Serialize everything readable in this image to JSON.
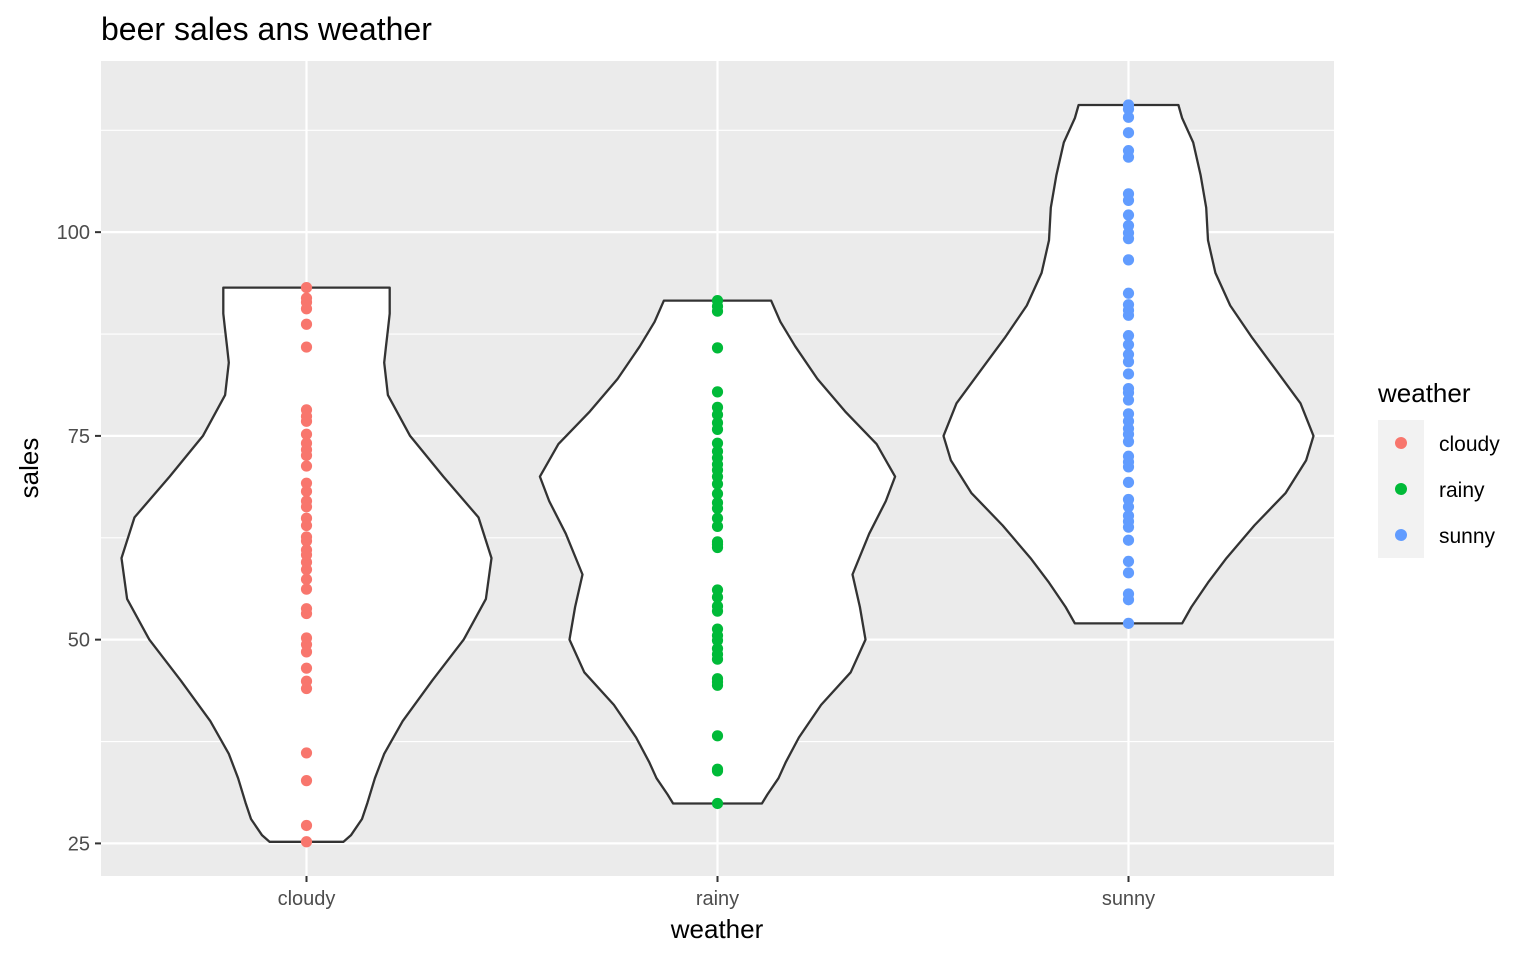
{
  "chart_data": {
    "type": "violin",
    "title": "beer sales ans weather",
    "xlabel": "weather",
    "ylabel": "sales",
    "categories": [
      "cloudy",
      "rainy",
      "sunny"
    ],
    "y_ticks": [
      25,
      50,
      75,
      100
    ],
    "ylim": [
      21,
      121
    ],
    "grid": true,
    "legend": {
      "title": "weather",
      "placement": "right",
      "entries": [
        "cloudy",
        "rainy",
        "sunny"
      ]
    },
    "colors": {
      "cloudy": "#F8766D",
      "rainy": "#00BA38",
      "sunny": "#619CFF",
      "panel_background": "#EBEBEB",
      "grid": "#FFFFFF",
      "violin_outline": "#333333"
    },
    "series": [
      {
        "name": "cloudy",
        "points": [
          25.2,
          27.2,
          32.7,
          36.1,
          44.0,
          44.9,
          46.5,
          48.5,
          49.4,
          50.2,
          53.2,
          53.8,
          56.2,
          57.4,
          58.6,
          59.5,
          60.4,
          61.0,
          62.1,
          62.6,
          64.0,
          64.9,
          66.3,
          67.0,
          68.2,
          69.2,
          71.3,
          72.6,
          73.3,
          74.1,
          75.2,
          76.8,
          77.4,
          78.2,
          85.9,
          88.7,
          90.6,
          91.4,
          91.9,
          93.2
        ],
        "violin_profile": [
          [
            25.2,
            0.2
          ],
          [
            26,
            0.24
          ],
          [
            28,
            0.3
          ],
          [
            30,
            0.33
          ],
          [
            33,
            0.37
          ],
          [
            36,
            0.42
          ],
          [
            40,
            0.52
          ],
          [
            45,
            0.68
          ],
          [
            50,
            0.85
          ],
          [
            55,
            0.97
          ],
          [
            60,
            1.0
          ],
          [
            65,
            0.93
          ],
          [
            70,
            0.74
          ],
          [
            75,
            0.56
          ],
          [
            80,
            0.44
          ],
          [
            84,
            0.42
          ],
          [
            86,
            0.43
          ],
          [
            88,
            0.44
          ],
          [
            90,
            0.45
          ],
          [
            93.2,
            0.45
          ]
        ]
      },
      {
        "name": "rainy",
        "points": [
          29.9,
          33.9,
          34.1,
          38.2,
          44.4,
          44.8,
          45.2,
          47.6,
          48.2,
          48.9,
          49.9,
          50.5,
          51.3,
          53.5,
          54.1,
          55.2,
          56.1,
          61.3,
          61.7,
          62.0,
          63.9,
          64.9,
          66.1,
          66.8,
          67.9,
          69.1,
          70.0,
          70.8,
          71.5,
          72.3,
          73.1,
          74.1,
          75.8,
          76.6,
          77.6,
          78.5,
          80.4,
          85.8,
          90.3,
          90.9,
          91.6
        ],
        "violin_profile": [
          [
            29.9,
            0.24
          ],
          [
            31,
            0.27
          ],
          [
            33,
            0.33
          ],
          [
            35,
            0.37
          ],
          [
            38,
            0.44
          ],
          [
            42,
            0.56
          ],
          [
            46,
            0.72
          ],
          [
            50,
            0.8
          ],
          [
            54,
            0.77
          ],
          [
            58,
            0.73
          ],
          [
            63,
            0.82
          ],
          [
            67,
            0.91
          ],
          [
            70,
            0.96
          ],
          [
            74,
            0.86
          ],
          [
            78,
            0.69
          ],
          [
            82,
            0.54
          ],
          [
            86,
            0.42
          ],
          [
            89,
            0.34
          ],
          [
            91.6,
            0.29
          ]
        ]
      },
      {
        "name": "sunny",
        "points": [
          52.0,
          54.9,
          55.6,
          58.2,
          59.6,
          62.2,
          63.8,
          64.5,
          65.2,
          66.3,
          67.2,
          69.3,
          71.2,
          71.8,
          72.5,
          74.3,
          75.2,
          75.9,
          76.8,
          77.7,
          79.4,
          80.3,
          80.8,
          82.6,
          84.1,
          85.0,
          86.2,
          87.3,
          89.8,
          90.4,
          91.1,
          92.5,
          96.6,
          99.2,
          99.9,
          100.8,
          102.1,
          103.9,
          104.7,
          109.2,
          110.0,
          112.2,
          114.1,
          115.1,
          115.6
        ],
        "violin_profile": [
          [
            52.0,
            0.29
          ],
          [
            54,
            0.34
          ],
          [
            57,
            0.43
          ],
          [
            60,
            0.53
          ],
          [
            64,
            0.68
          ],
          [
            68,
            0.85
          ],
          [
            72,
            0.96
          ],
          [
            75,
            1.0
          ],
          [
            79,
            0.93
          ],
          [
            83,
            0.8
          ],
          [
            87,
            0.67
          ],
          [
            91,
            0.55
          ],
          [
            95,
            0.47
          ],
          [
            99,
            0.43
          ],
          [
            103,
            0.42
          ],
          [
            107,
            0.39
          ],
          [
            111,
            0.35
          ],
          [
            114,
            0.29
          ],
          [
            115.6,
            0.27
          ]
        ]
      }
    ]
  }
}
